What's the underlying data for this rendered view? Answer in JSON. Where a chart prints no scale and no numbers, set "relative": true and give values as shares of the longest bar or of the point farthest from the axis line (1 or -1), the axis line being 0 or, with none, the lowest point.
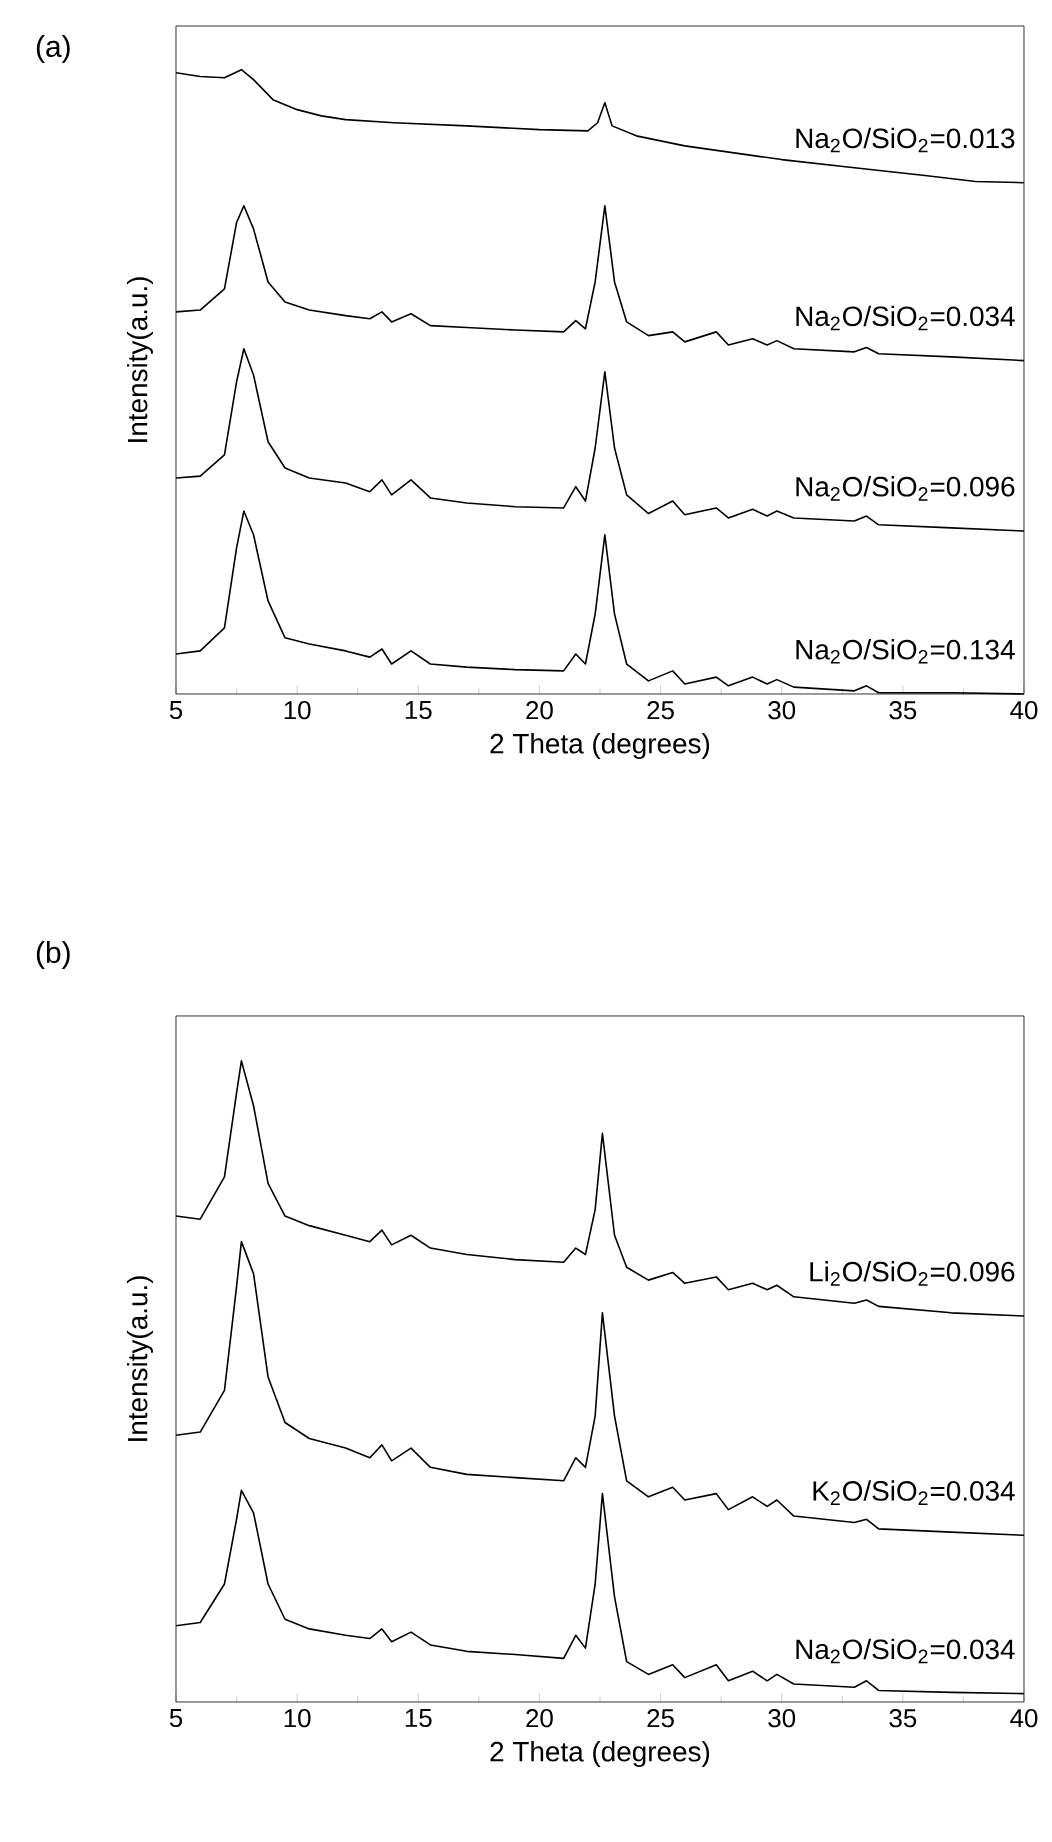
{
  "chart_data": [
    {
      "type": "line",
      "title": "(a)",
      "xlabel": "2 Theta (degrees)",
      "ylabel": "Intensity(a.u.)",
      "relative": true,
      "xlim": [
        5,
        40
      ],
      "xticks": [
        5,
        10,
        15,
        20,
        25,
        30,
        35,
        40
      ],
      "marker": "none",
      "line_style": "solid",
      "x": [
        5,
        6,
        7,
        7.5,
        7.8,
        8.2,
        8.8,
        9.5,
        10.5,
        12,
        13,
        13.5,
        13.9,
        14.7,
        15.5,
        17,
        19,
        21,
        21.5,
        21.9,
        22.3,
        22.7,
        23.1,
        23.6,
        24.5,
        25.5,
        26,
        27.3,
        27.8,
        28.8,
        29.4,
        29.8,
        30.5,
        33,
        33.5,
        34,
        37,
        40
      ],
      "series": [
        {
          "name": "Na$_{2}$O/SiO$_{2}$=0.013",
          "color": "#000000",
          "x": [
            5,
            6,
            7,
            7.7,
            8.2,
            9,
            10,
            11,
            12,
            14,
            17,
            20,
            22,
            22.4,
            22.7,
            23,
            24,
            26,
            28,
            30,
            33,
            36,
            38,
            40
          ],
          "values": [
            0.995,
            0.989,
            0.987,
            1.0,
            0.984,
            0.952,
            0.936,
            0.926,
            0.92,
            0.915,
            0.91,
            0.904,
            0.902,
            0.915,
            0.947,
            0.91,
            0.894,
            0.878,
            0.867,
            0.856,
            0.843,
            0.83,
            0.821,
            0.819
          ]
        },
        {
          "name": "Na$_{2}$O/SiO$_{2}$=0.034",
          "color": "#000000",
          "values": [
            0.612,
            0.615,
            0.649,
            0.755,
            0.782,
            0.745,
            0.66,
            0.628,
            0.615,
            0.606,
            0.601,
            0.612,
            0.596,
            0.609,
            0.59,
            0.587,
            0.583,
            0.58,
            0.598,
            0.585,
            0.66,
            0.782,
            0.66,
            0.596,
            0.574,
            0.58,
            0.564,
            0.58,
            0.559,
            0.569,
            0.559,
            0.566,
            0.553,
            0.548,
            0.555,
            0.545,
            0.54,
            0.534
          ]
        },
        {
          "name": "Na$_{2}$O/SiO$_{2}$=0.096",
          "color": "#000000",
          "values": [
            0.346,
            0.349,
            0.383,
            0.5,
            0.553,
            0.511,
            0.404,
            0.362,
            0.346,
            0.338,
            0.324,
            0.343,
            0.319,
            0.343,
            0.314,
            0.306,
            0.3,
            0.298,
            0.332,
            0.309,
            0.394,
            0.516,
            0.394,
            0.319,
            0.289,
            0.309,
            0.287,
            0.298,
            0.282,
            0.296,
            0.285,
            0.293,
            0.282,
            0.277,
            0.285,
            0.271,
            0.266,
            0.261
          ]
        },
        {
          "name": "Na$_{2}$O/SiO$_{2}$=0.134",
          "color": "#000000",
          "values": [
            0.064,
            0.069,
            0.106,
            0.234,
            0.293,
            0.255,
            0.149,
            0.09,
            0.08,
            0.069,
            0.059,
            0.072,
            0.048,
            0.069,
            0.048,
            0.043,
            0.039,
            0.037,
            0.064,
            0.048,
            0.128,
            0.255,
            0.128,
            0.048,
            0.021,
            0.037,
            0.016,
            0.027,
            0.013,
            0.027,
            0.016,
            0.023,
            0.011,
            0.005,
            0.013,
            0.002,
            0.002,
            0
          ]
        }
      ]
    },
    {
      "type": "line",
      "title": "(b)",
      "xlabel": "2 Theta (degrees)",
      "ylabel": "Intensity(a.u.)",
      "relative": true,
      "xlim": [
        5,
        40
      ],
      "xticks": [
        5,
        10,
        15,
        20,
        25,
        30,
        35,
        40
      ],
      "marker": "none",
      "line_style": "solid",
      "x": [
        5,
        6,
        7,
        7.5,
        7.7,
        8.2,
        8.8,
        9.5,
        10.5,
        12,
        13,
        13.5,
        13.9,
        14.7,
        15.5,
        17,
        19,
        21,
        21.5,
        21.9,
        22.3,
        22.6,
        23.1,
        23.6,
        24.5,
        25.5,
        26,
        27.3,
        27.8,
        28.8,
        29.4,
        29.8,
        30.5,
        33,
        33.5,
        34,
        37,
        40
      ],
      "series": [
        {
          "name": "Li$_{2}$O/SiO$_{2}$=0.096",
          "color": "#000000",
          "values": [
            0.758,
            0.753,
            0.819,
            0.95,
            1.0,
            0.93,
            0.809,
            0.758,
            0.743,
            0.728,
            0.718,
            0.736,
            0.713,
            0.728,
            0.708,
            0.698,
            0.69,
            0.686,
            0.708,
            0.698,
            0.768,
            0.887,
            0.728,
            0.678,
            0.658,
            0.67,
            0.653,
            0.663,
            0.643,
            0.653,
            0.643,
            0.65,
            0.632,
            0.622,
            0.627,
            0.617,
            0.607,
            0.602
          ]
        },
        {
          "name": "K$_{2}$O/SiO$_{2}$=0.034",
          "color": "#000000",
          "values": [
            0.416,
            0.421,
            0.486,
            0.648,
            0.718,
            0.668,
            0.507,
            0.436,
            0.411,
            0.396,
            0.381,
            0.401,
            0.376,
            0.396,
            0.366,
            0.355,
            0.35,
            0.345,
            0.381,
            0.366,
            0.446,
            0.607,
            0.446,
            0.345,
            0.32,
            0.335,
            0.315,
            0.325,
            0.3,
            0.32,
            0.305,
            0.315,
            0.29,
            0.28,
            0.285,
            0.27,
            0.265,
            0.26
          ]
        },
        {
          "name": "Na$_{2}$O/SiO$_{2}$=0.034",
          "color": "#000000",
          "values": [
            0.119,
            0.124,
            0.184,
            0.285,
            0.33,
            0.295,
            0.184,
            0.129,
            0.114,
            0.104,
            0.099,
            0.114,
            0.094,
            0.109,
            0.089,
            0.079,
            0.074,
            0.068,
            0.104,
            0.084,
            0.184,
            0.325,
            0.164,
            0.063,
            0.043,
            0.058,
            0.038,
            0.058,
            0.033,
            0.048,
            0.033,
            0.043,
            0.028,
            0.023,
            0.033,
            0.018,
            0.015,
            0.013
          ]
        }
      ]
    }
  ]
}
